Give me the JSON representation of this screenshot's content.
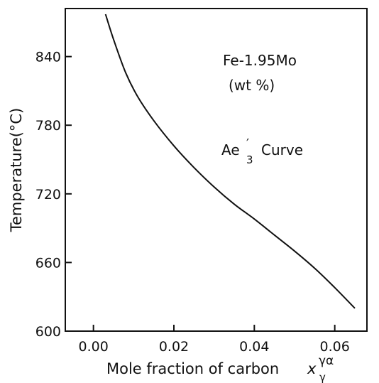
{
  "chart_data": {
    "type": "line",
    "title": "",
    "xlabel": "Mole fraction of carbon",
    "xlabel_symbol": "x",
    "xlabel_superscript": "γα",
    "xlabel_subscript": "γ",
    "ylabel": "Temperature(°C)",
    "xlim": [
      -0.007,
      0.068
    ],
    "ylim": [
      600,
      882
    ],
    "x_ticks": [
      0.0,
      0.02,
      0.04,
      0.06
    ],
    "x_tick_labels": [
      "0.00",
      "0.02",
      "0.04",
      "0.06"
    ],
    "y_ticks": [
      600,
      660,
      720,
      780,
      840
    ],
    "y_tick_labels": [
      "600",
      "660",
      "720",
      "780",
      "840"
    ],
    "grid": false,
    "annotations": {
      "alloy": "Fe-1.95Mo",
      "units": "(wt %)",
      "curve_main": "Ae",
      "curve_prime": "′",
      "curve_sub": "3",
      "curve_word": "Curve"
    },
    "series": [
      {
        "name": "Ae′3",
        "x": [
          0.003,
          0.005,
          0.008,
          0.011,
          0.015,
          0.02,
          0.025,
          0.03,
          0.035,
          0.04,
          0.045,
          0.05,
          0.055,
          0.06,
          0.065
        ],
        "y": [
          877,
          855,
          826,
          805,
          784,
          762,
          743,
          726,
          711,
          698,
          684,
          670,
          655,
          638,
          620
        ]
      }
    ],
    "colors": {
      "line": "#111111",
      "axis": "#111111"
    }
  }
}
